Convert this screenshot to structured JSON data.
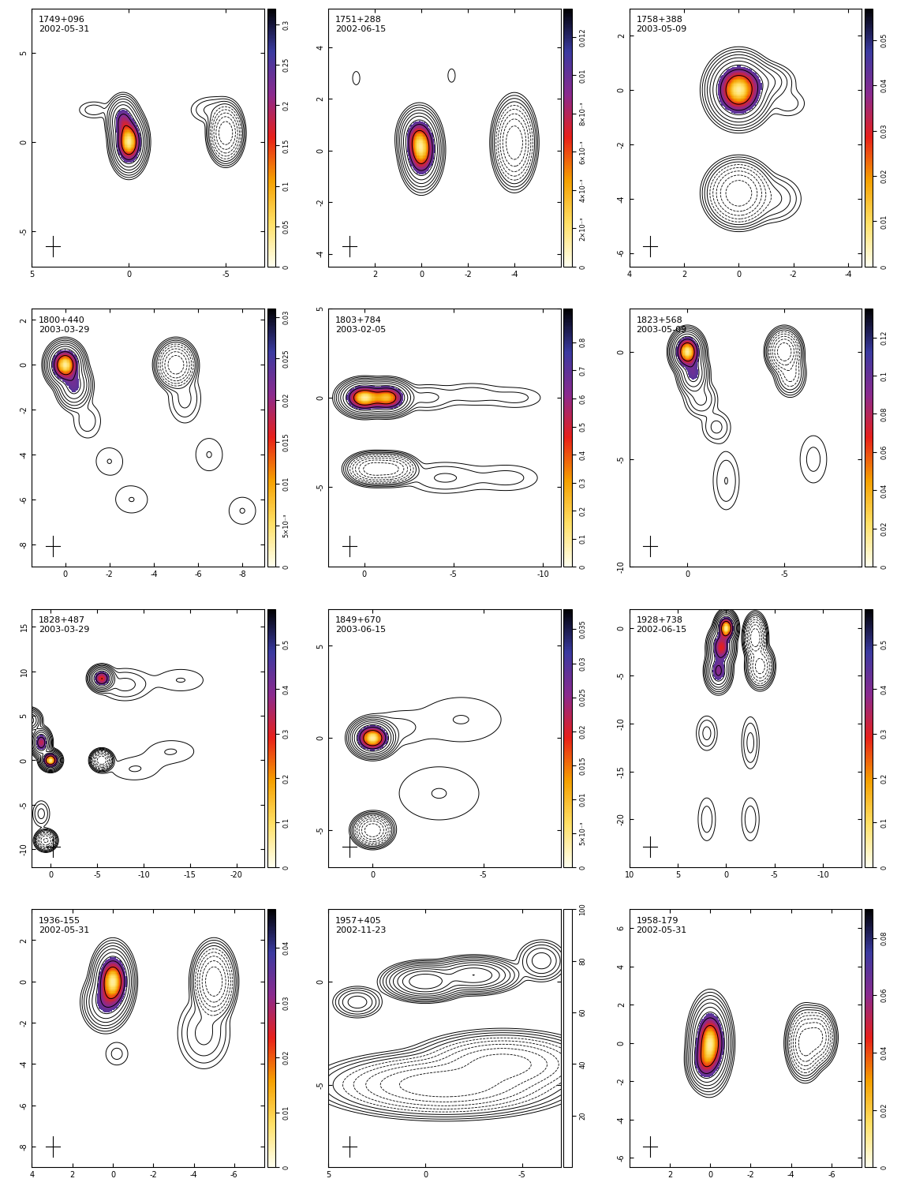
{
  "chart_data": [
    {
      "type": "overlay",
      "title": "1749+096",
      "subtitle": "2002-05-31",
      "xlim": [
        5,
        -7
      ],
      "xticks": [
        5,
        0,
        -5
      ],
      "ylim": [
        -7,
        7.5
      ],
      "yticks": [
        -5,
        0,
        5
      ],
      "colorbar": {
        "lim": [
          0,
          0.32
        ],
        "ticks": [
          0,
          0.05,
          0.1,
          0.15,
          0.2,
          0.25,
          0.3
        ]
      },
      "total_components": [
        [
          0,
          0,
          0.32,
          0.6,
          1
        ],
        [
          0.3,
          1.2,
          0.3,
          0.5,
          0.3
        ],
        [
          1.8,
          1.8,
          0.5,
          0.3,
          0.006
        ]
      ],
      "pol_components": [
        [
          -5,
          0.5,
          0.3,
          0.55,
          1
        ],
        [
          -4.3,
          1.8,
          0.6,
          0.4,
          0.01
        ]
      ]
    },
    {
      "type": "overlay",
      "title": "1751+288",
      "subtitle": "2002-06-15",
      "xlim": [
        4,
        -6
      ],
      "xticks": [
        2,
        0,
        -2,
        -4
      ],
      "ylim": [
        -4.5,
        5.5
      ],
      "yticks": [
        -4,
        -2,
        0,
        2,
        4
      ],
      "colorbar": {
        "lim": [
          0,
          0.0135
        ],
        "ticks": [
          0,
          {
            "value": 0.002,
            "label": "2×10⁻³"
          },
          {
            "value": 0.004,
            "label": "4×10⁻³"
          },
          {
            "value": 0.006,
            "label": "6×10⁻³"
          },
          {
            "value": 0.008,
            "label": "8×10⁻³"
          },
          0.01,
          0.012
        ]
      },
      "total_components": [
        [
          0,
          0,
          0.3,
          0.5,
          1
        ],
        [
          0.15,
          0.5,
          0.3,
          0.4,
          0.4
        ],
        [
          2.8,
          2.8,
          0.15,
          0.25,
          0.004
        ],
        [
          -1.3,
          2.9,
          0.15,
          0.25,
          0.004
        ]
      ],
      "pol_components": [
        [
          -4,
          0.3,
          0.3,
          0.55,
          1
        ]
      ]
    },
    {
      "type": "overlay",
      "title": "1758+388",
      "subtitle": "2003-05-09",
      "xlim": [
        4,
        -4.5
      ],
      "xticks": [
        4,
        2,
        0,
        -2,
        -4
      ],
      "ylim": [
        -6.5,
        3
      ],
      "yticks": [
        -6,
        -4,
        -2,
        0,
        2
      ],
      "colorbar": {
        "lim": [
          0,
          0.057
        ],
        "ticks": [
          0,
          0.01,
          0.02,
          0.03,
          0.04,
          0.05
        ]
      },
      "total_components": [
        [
          0,
          0,
          0.4,
          0.45,
          1
        ],
        [
          -0.8,
          0.3,
          0.5,
          0.3,
          0.05
        ],
        [
          -1.8,
          -0.5,
          0.4,
          0.3,
          0.006
        ]
      ],
      "pol_components": [
        [
          0,
          -3.8,
          0.4,
          0.4,
          1
        ],
        [
          -1.2,
          -4,
          0.5,
          0.4,
          0.02
        ]
      ]
    },
    {
      "type": "overlay",
      "title": "1800+440",
      "subtitle": "2003-03-29",
      "xlim": [
        1.5,
        -9
      ],
      "xticks": [
        0,
        -2,
        -4,
        -6,
        -8
      ],
      "ylim": [
        -9,
        2.5
      ],
      "yticks": [
        -8,
        -6,
        -4,
        -2,
        0,
        2
      ],
      "colorbar": {
        "lim": [
          0,
          0.031
        ],
        "ticks": [
          0,
          {
            "value": 0.005,
            "label": "5×10⁻³"
          },
          0.01,
          0.015,
          0.02,
          0.025,
          0.03
        ]
      },
      "total_components": [
        [
          0,
          0,
          0.3,
          0.35,
          1
        ],
        [
          -0.4,
          -0.9,
          0.3,
          0.4,
          0.2
        ],
        [
          -1,
          -2.5,
          0.4,
          0.5,
          0.006
        ],
        [
          -2,
          -4.3,
          0.5,
          0.5,
          0.004
        ],
        [
          -3,
          -6,
          0.6,
          0.5,
          0.004
        ]
      ],
      "pol_components": [
        [
          -5,
          0,
          0.3,
          0.35,
          1
        ],
        [
          -5.4,
          -1.5,
          0.4,
          0.6,
          0.01
        ],
        [
          -6.5,
          -4,
          0.5,
          0.6,
          0.004
        ],
        [
          -8,
          -6.5,
          0.5,
          0.5,
          0.004
        ]
      ]
    },
    {
      "type": "overlay",
      "title": "1803+784",
      "subtitle": "2003-02-05",
      "xlim": [
        2,
        -11
      ],
      "xticks": [
        0,
        -5,
        -10
      ],
      "ylim": [
        -9.5,
        5
      ],
      "yticks": [
        -5,
        0,
        5
      ],
      "colorbar": {
        "lim": [
          0,
          0.92
        ],
        "ticks": [
          0,
          0.1,
          0.2,
          0.3,
          0.4,
          0.5,
          0.6,
          0.7,
          0.8
        ]
      },
      "total_components": [
        [
          0,
          0,
          0.5,
          0.35,
          1
        ],
        [
          -1.3,
          0,
          0.5,
          0.35,
          0.8
        ],
        [
          -3.5,
          0,
          0.8,
          0.4,
          0.01
        ],
        [
          -6,
          0.2,
          1,
          0.4,
          0.006
        ],
        [
          -8.5,
          0,
          1,
          0.4,
          0.005
        ]
      ],
      "pol_components": [
        [
          -0.5,
          -4,
          0.5,
          0.3,
          1
        ],
        [
          -1.5,
          -4,
          0.5,
          0.3,
          0.8
        ],
        [
          -4.5,
          -4.5,
          1.2,
          0.5,
          0.01
        ],
        [
          -8,
          -4.5,
          1.2,
          0.5,
          0.006
        ]
      ]
    },
    {
      "type": "overlay",
      "title": "1823+568",
      "subtitle": "2003-05-09",
      "xlim": [
        3,
        -9
      ],
      "xticks": [
        0,
        -5
      ],
      "ylim": [
        -10,
        2
      ],
      "yticks": [
        -10,
        -5,
        0
      ],
      "colorbar": {
        "lim": [
          0,
          0.135
        ],
        "ticks": [
          0,
          0.02,
          0.04,
          0.06,
          0.08,
          0.1,
          0.12
        ]
      },
      "total_components": [
        [
          0,
          0,
          0.3,
          0.35,
          1
        ],
        [
          -0.3,
          -1,
          0.3,
          0.4,
          0.2
        ],
        [
          -0.7,
          -2.2,
          0.4,
          0.4,
          0.02
        ],
        [
          -1.5,
          -3.5,
          0.4,
          0.4,
          0.01
        ],
        [
          -2,
          -6,
          0.4,
          0.8,
          0.008
        ]
      ],
      "pol_components": [
        [
          -5,
          0,
          0.3,
          0.35,
          1
        ],
        [
          -5.3,
          -1,
          0.3,
          0.4,
          0.1
        ],
        [
          -6.5,
          -5,
          0.5,
          0.8,
          0.005
        ]
      ]
    },
    {
      "type": "overlay",
      "title": "1828+487",
      "subtitle": "2003-03-29",
      "xlim": [
        2,
        -23
      ],
      "xticks": [
        0,
        -5,
        -10,
        -15,
        -20
      ],
      "ylim": [
        -12,
        17
      ],
      "yticks": [
        -10,
        -5,
        0,
        5,
        10,
        15
      ],
      "colorbar": {
        "lim": [
          0,
          0.58
        ],
        "ticks": [
          0,
          0.1,
          0.2,
          0.3,
          0.4,
          0.5
        ]
      },
      "total_components": [
        [
          0,
          0,
          0.4,
          0.4,
          1
        ],
        [
          1,
          2,
          0.4,
          0.6,
          0.4
        ],
        [
          2.3,
          4.5,
          0.5,
          0.5,
          0.2
        ],
        [
          -5.5,
          9.2,
          0.5,
          0.5,
          0.5
        ],
        [
          -8,
          8.5,
          1.5,
          1,
          0.01
        ],
        [
          -14,
          9,
          2,
          1,
          0.004
        ]
      ],
      "pol_components": [
        [
          -5.5,
          0,
          0.4,
          0.4,
          1
        ],
        [
          -9,
          -1,
          2,
          1,
          0.004
        ],
        [
          0.5,
          -9,
          0.4,
          0.4,
          0.6
        ],
        [
          1,
          -6,
          0.5,
          0.8,
          0.01
        ],
        [
          -13,
          1,
          2,
          1,
          0.004
        ]
      ]
    },
    {
      "type": "overlay",
      "title": "1849+670",
      "subtitle": "2003-06-15",
      "xlim": [
        2,
        -8.5
      ],
      "xticks": [
        0,
        -5
      ],
      "ylim": [
        -7,
        7
      ],
      "yticks": [
        -5,
        0,
        5
      ],
      "colorbar": {
        "lim": [
          0,
          0.038
        ],
        "ticks": [
          0,
          {
            "value": 0.005,
            "label": "5×10⁻³"
          },
          0.01,
          0.015,
          0.02,
          0.025,
          0.03,
          0.035
        ]
      },
      "total_components": [
        [
          0,
          0,
          0.35,
          0.35,
          1
        ],
        [
          -1,
          0.5,
          0.8,
          0.6,
          0.005
        ],
        [
          -4,
          1,
          1.5,
          1,
          0.004
        ]
      ],
      "pol_components": [
        [
          0,
          -5,
          0.3,
          0.3,
          1
        ],
        [
          -3,
          -3,
          1.5,
          1.2,
          0.004
        ]
      ]
    },
    {
      "type": "overlay",
      "title": "1928+738",
      "subtitle": "2002-06-15",
      "xlim": [
        10,
        -14
      ],
      "xticks": [
        10,
        5,
        0,
        -5,
        -10
      ],
      "ylim": [
        -25,
        2
      ],
      "yticks": [
        -20,
        -15,
        -10,
        -5,
        0
      ],
      "colorbar": {
        "lim": [
          0,
          0.58
        ],
        "ticks": [
          0,
          0.1,
          0.2,
          0.3,
          0.4,
          0.5
        ]
      },
      "total_components": [
        [
          0,
          0,
          0.4,
          0.6,
          1
        ],
        [
          0.5,
          -2,
          0.5,
          0.8,
          0.5
        ],
        [
          0.8,
          -4.5,
          0.5,
          0.8,
          0.3
        ],
        [
          2,
          -11,
          0.6,
          1,
          0.01
        ],
        [
          2,
          -20,
          0.6,
          1.5,
          0.006
        ]
      ],
      "pol_components": [
        [
          -3,
          -1,
          0.4,
          0.8,
          1
        ],
        [
          -3.5,
          -4,
          0.5,
          0.8,
          0.4
        ],
        [
          -2.5,
          -12,
          0.5,
          1.5,
          0.01
        ],
        [
          -2.5,
          -20,
          0.6,
          1.5,
          0.006
        ]
      ]
    },
    {
      "type": "overlay",
      "title": "1936-155",
      "subtitle": "2002-05-31",
      "xlim": [
        4,
        -7.5
      ],
      "xticks": [
        4,
        2,
        0,
        -2,
        -4,
        -6
      ],
      "ylim": [
        -9,
        3.5
      ],
      "yticks": [
        -8,
        -6,
        -4,
        -2,
        0,
        2
      ],
      "colorbar": {
        "lim": [
          0,
          0.047
        ],
        "ticks": [
          0,
          0.01,
          0.02,
          0.03,
          0.04
        ]
      },
      "total_components": [
        [
          0,
          0,
          0.35,
          0.6,
          1
        ],
        [
          0.4,
          -1,
          0.4,
          0.5,
          0.2
        ],
        [
          -0.2,
          -3.5,
          0.4,
          0.4,
          0.005
        ]
      ],
      "pol_components": [
        [
          -5,
          0,
          0.35,
          0.6,
          1
        ],
        [
          -4.5,
          -2.5,
          0.6,
          0.8,
          0.02
        ]
      ]
    },
    {
      "type": "contour",
      "title": "1957+405",
      "subtitle": "2002-11-23",
      "xlim": [
        5,
        -7
      ],
      "xticks": [
        5,
        0,
        -5
      ],
      "ylim": [
        -9,
        3.5
      ],
      "yticks": [
        -5,
        0
      ],
      "colorbar": {
        "lim": [
          0,
          100
        ],
        "ticks": [
          20,
          40,
          60,
          80,
          100
        ]
      },
      "total_components": [
        [
          0,
          0,
          0.7,
          0.3,
          1
        ],
        [
          -2.5,
          0.3,
          0.8,
          0.3,
          0.5
        ],
        [
          -6,
          1,
          0.5,
          0.4,
          0.05
        ],
        [
          3.5,
          -1,
          0.5,
          0.3,
          0.05
        ]
      ],
      "pol_components": [
        [
          -1,
          -5,
          2,
          0.5,
          1
        ],
        [
          -4,
          -4,
          1.5,
          0.5,
          0.8
        ]
      ]
    },
    {
      "type": "overlay",
      "title": "1958-179",
      "subtitle": "2002-05-31",
      "xlim": [
        4,
        -7.5
      ],
      "xticks": [
        2,
        0,
        -2,
        -4,
        -6
      ],
      "ylim": [
        -6.5,
        7
      ],
      "yticks": [
        -6,
        -4,
        -2,
        0,
        2,
        4,
        6
      ],
      "colorbar": {
        "lim": [
          0,
          0.09
        ],
        "ticks": [
          0,
          0.02,
          0.04,
          0.06,
          0.08
        ]
      },
      "total_components": [
        [
          0,
          0,
          0.35,
          0.8,
          1
        ],
        [
          0.3,
          -1,
          0.3,
          0.5,
          0.3
        ]
      ],
      "pol_components": [
        [
          -4.7,
          0,
          0.3,
          0.6,
          1
        ],
        [
          -5.3,
          0.3,
          0.3,
          0.5,
          0.8
        ]
      ]
    }
  ]
}
